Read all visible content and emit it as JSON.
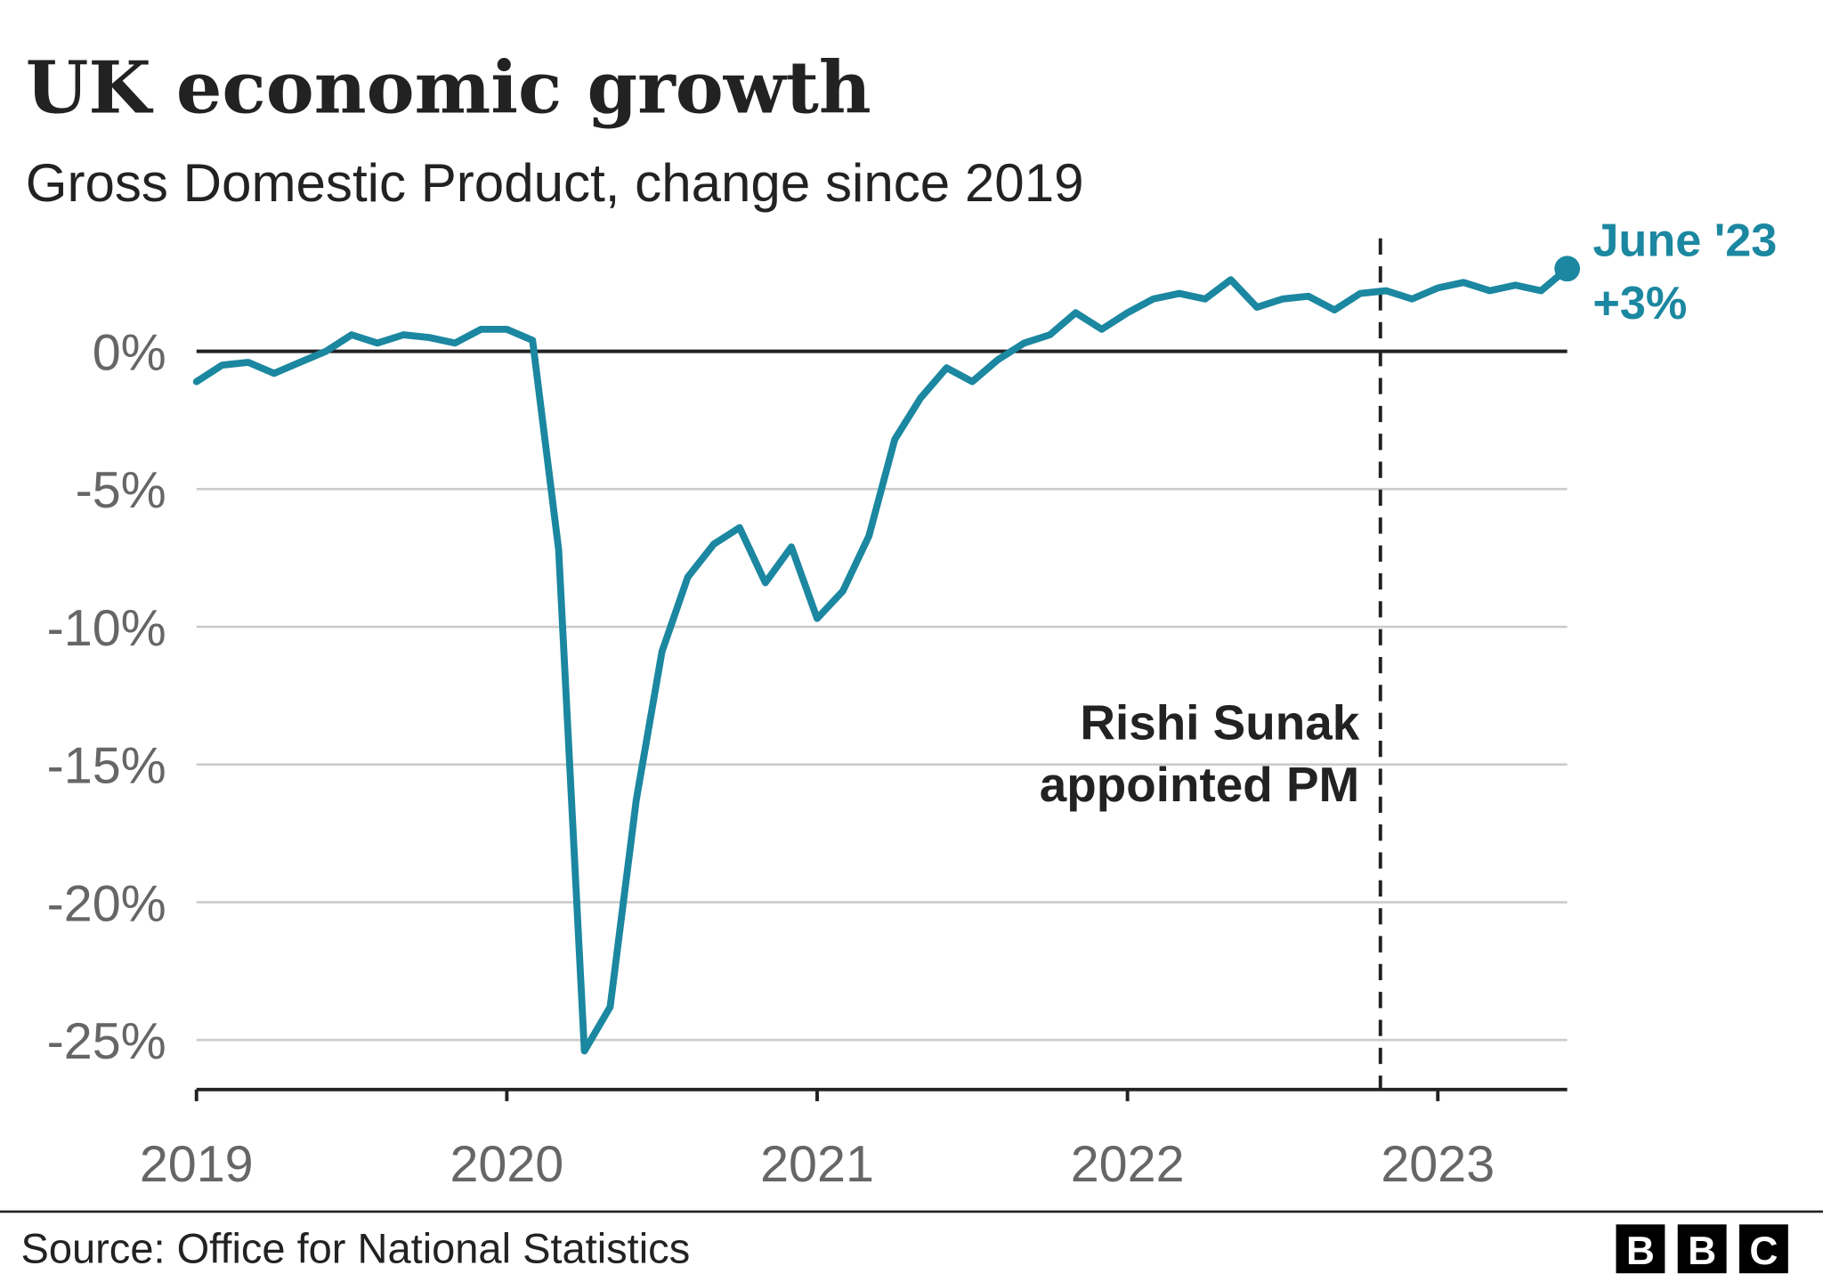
{
  "chart_data": {
    "type": "line",
    "title": "UK economic growth",
    "subtitle": "Gross Domestic Product, change since 2019",
    "source": "Source: Office for National Statistics",
    "logo": [
      "B",
      "B",
      "C"
    ],
    "x": [
      2019,
      2019.083,
      2019.167,
      2019.25,
      2019.333,
      2019.417,
      2019.5,
      2019.583,
      2019.667,
      2019.75,
      2019.833,
      2019.917,
      2020,
      2020.083,
      2020.167,
      2020.25,
      2020.333,
      2020.417,
      2020.5,
      2020.583,
      2020.667,
      2020.75,
      2020.833,
      2020.917,
      2021,
      2021.083,
      2021.167,
      2021.25,
      2021.333,
      2021.417,
      2021.5,
      2021.583,
      2021.667,
      2021.75,
      2021.833,
      2021.917,
      2022,
      2022.083,
      2022.167,
      2022.25,
      2022.333,
      2022.417,
      2022.5,
      2022.583,
      2022.667,
      2022.75,
      2022.833,
      2022.917,
      2023,
      2023.083,
      2023.167,
      2023.25,
      2023.333,
      2023.417
    ],
    "series": [
      {
        "color": "#1b87a0",
        "end_label": "June '23",
        "values": [
          -1.1,
          -0.5,
          -0.4,
          -0.8,
          -0.4,
          0.0,
          0.6,
          0.3,
          0.6,
          0.5,
          0.3,
          0.8,
          0.8,
          0.4,
          -7.2,
          -25.4,
          -23.8,
          -16.3,
          -10.9,
          -8.2,
          -7.0,
          -6.4,
          -8.4,
          -7.1,
          -9.7,
          -8.7,
          -6.7,
          -3.2,
          -1.7,
          -0.6,
          -1.1,
          -0.3,
          0.3,
          0.6,
          1.4,
          0.8,
          1.4,
          1.9,
          2.1,
          1.9,
          2.6,
          1.6,
          1.9,
          2.0,
          1.5,
          2.1,
          2.2,
          1.9,
          2.3,
          2.5,
          2.2,
          2.4,
          2.2,
          3.0
        ],
        "value_labels": [
          null,
          null,
          null,
          null,
          null,
          null,
          null,
          null,
          null,
          null,
          null,
          null,
          null,
          null,
          null,
          null,
          null,
          null,
          null,
          null,
          null,
          null,
          null,
          null,
          null,
          null,
          null,
          null,
          null,
          null,
          null,
          null,
          null,
          null,
          null,
          null,
          null,
          null,
          null,
          null,
          null,
          null,
          null,
          null,
          null,
          null,
          null,
          null,
          null,
          null,
          null,
          null,
          null,
          "+3%"
        ]
      }
    ],
    "xlim": [
      2019,
      2023.417
    ],
    "xticks": [
      2019,
      2020,
      2021,
      2022,
      2023
    ],
    "ylim": [
      -26.8,
      4.1
    ],
    "yticks": [
      {
        "value": 0,
        "label": "0%"
      },
      {
        "value": -5,
        "label": "-5%"
      },
      {
        "value": -10,
        "label": "-10%"
      },
      {
        "value": -15,
        "label": "-15%"
      },
      {
        "value": -20,
        "label": "-20%"
      },
      {
        "value": -25,
        "label": "-25%"
      }
    ],
    "grid": true,
    "annotations": [
      {
        "x": 2022.815,
        "lines": [
          "Rishi Sunak",
          "appointed PM"
        ]
      }
    ]
  }
}
